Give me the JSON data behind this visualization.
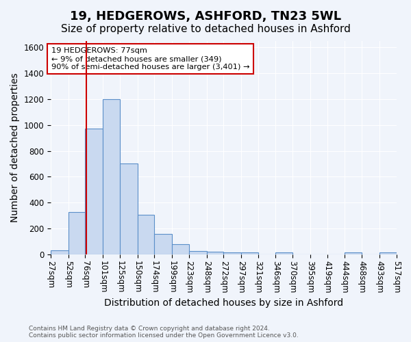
{
  "title1": "19, HEDGEROWS, ASHFORD, TN23 5WL",
  "title2": "Size of property relative to detached houses in Ashford",
  "xlabel": "Distribution of detached houses by size in Ashford",
  "ylabel": "Number of detached properties",
  "bar_values": [
    30,
    325,
    970,
    1200,
    700,
    305,
    155,
    78,
    25,
    18,
    15,
    12,
    0,
    12,
    0,
    0,
    0,
    15,
    0,
    15
  ],
  "bin_edges": [
    27,
    52,
    76,
    101,
    125,
    150,
    174,
    199,
    223,
    248,
    272,
    297,
    321,
    346,
    370,
    395,
    419,
    444,
    468,
    493,
    517
  ],
  "bin_labels": [
    "27sqm",
    "52sqm",
    "76sqm",
    "101sqm",
    "125sqm",
    "150sqm",
    "174sqm",
    "199sqm",
    "223sqm",
    "248sqm",
    "272sqm",
    "297sqm",
    "321sqm",
    "346sqm",
    "370sqm",
    "395sqm",
    "419sqm",
    "444sqm",
    "468sqm",
    "493sqm",
    "517sqm"
  ],
  "bar_color": "#c9d9f0",
  "bar_edge_color": "#5b8fc9",
  "vline_x": 77,
  "vline_color": "#cc0000",
  "ylim": [
    0,
    1650
  ],
  "yticks": [
    0,
    200,
    400,
    600,
    800,
    1000,
    1200,
    1400,
    1600
  ],
  "annotation_text": "19 HEDGEROWS: 77sqm\n← 9% of detached houses are smaller (349)\n90% of semi-detached houses are larger (3,401) →",
  "annotation_box_color": "#cc0000",
  "footer": "Contains HM Land Registry data © Crown copyright and database right 2024.\nContains public sector information licensed under the Open Government Licence v3.0.",
  "background_color": "#f0f4fb",
  "grid_color": "#ffffff",
  "title_fontsize": 13,
  "subtitle_fontsize": 11,
  "axis_label_fontsize": 10,
  "tick_fontsize": 8.5
}
